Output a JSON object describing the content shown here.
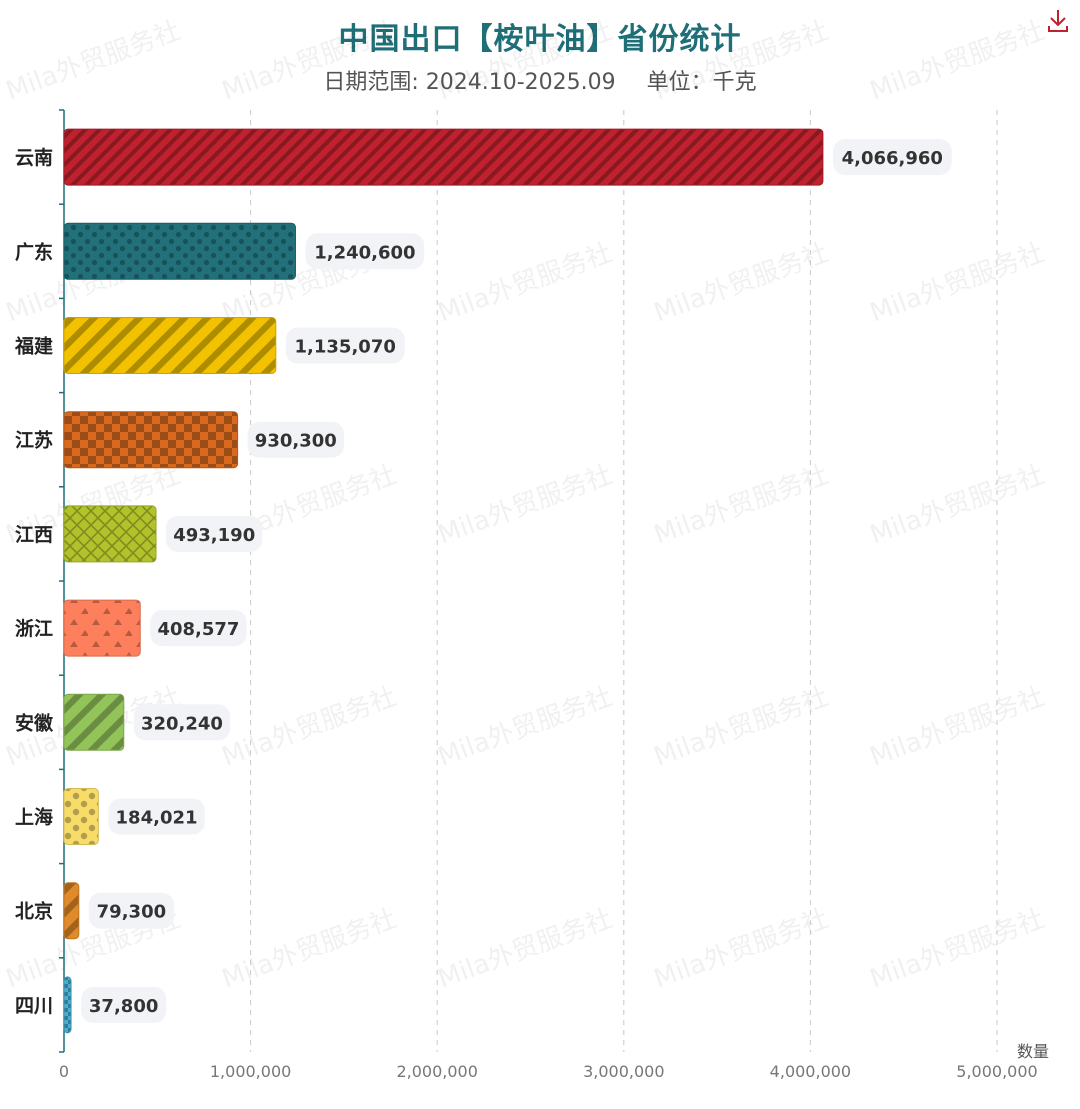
{
  "header": {
    "title": "中国出口【桉叶油】省份统计",
    "date_range": "日期范围: 2024.10-2025.09",
    "unit": "单位：千克"
  },
  "toolbar": {
    "download_icon": "download-icon"
  },
  "watermark": "Mila外贸服务社",
  "chart_data": {
    "type": "bar",
    "orientation": "horizontal",
    "title": "中国出口【桉叶油】省份统计",
    "subtitle": "日期范围: 2024.10-2025.09    单位：千克",
    "xlabel": "数量",
    "ylabel": "",
    "categories": [
      "云南",
      "广东",
      "福建",
      "江苏",
      "江西",
      "浙江",
      "安徽",
      "上海",
      "北京",
      "四川"
    ],
    "values": [
      4066960,
      1240600,
      1135070,
      930300,
      493190,
      408577,
      320240,
      184021,
      79300,
      37800
    ],
    "value_labels": [
      "4,066,960",
      "1,240,600",
      "1,135,070",
      "930,300",
      "493,190",
      "408,577",
      "320,240",
      "184,021",
      "79,300",
      "37,800"
    ],
    "xlim": [
      0,
      5000000
    ],
    "x_ticks": [
      0,
      1000000,
      2000000,
      3000000,
      4000000,
      5000000
    ],
    "x_tick_labels": [
      "0",
      "1,000,000",
      "2,000,000",
      "3,000,000",
      "4,000,000",
      "5,000,000"
    ],
    "grid": true,
    "colors": [
      "#c0212e",
      "#21707a",
      "#f2c200",
      "#d9691e",
      "#b2c22b",
      "#fd7f5c",
      "#93c45a",
      "#f8dc6a",
      "#e08a2a",
      "#4aaed0"
    ],
    "patterns": [
      "stripe-dense",
      "dots",
      "stripe-wide",
      "checker",
      "crosshatch",
      "triangles",
      "stripe-wide",
      "dots-large",
      "stripe-wide",
      "checker-small"
    ],
    "axis_color": "#1f6f78"
  }
}
